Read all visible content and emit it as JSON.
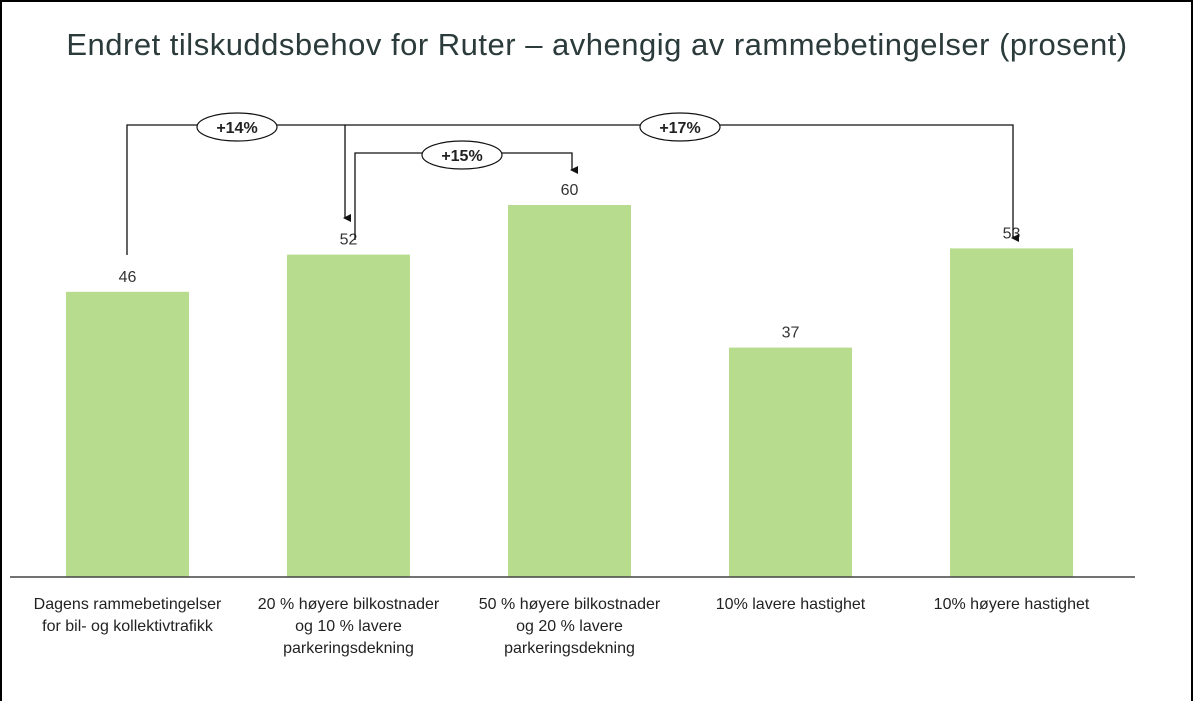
{
  "chart_data": {
    "type": "bar",
    "title": "Endret tilskuddsbehov for Ruter – avhengig av rammebetingelser (prosent)",
    "categories": [
      "Dagens rammebetingelser for bil- og kollektivtrafikk",
      "20 % høyere bilkostnader og 10 % lavere parkeringsdekning",
      "50 % høyere bilkostnader og 20 % lavere parkeringsdekning",
      "10% lavere hastighet",
      "10% høyere hastighet"
    ],
    "values": [
      46,
      52,
      60,
      37,
      53
    ],
    "color": "#b8dc8e",
    "annotations": [
      "+14%",
      "+15%",
      "+17%"
    ]
  }
}
